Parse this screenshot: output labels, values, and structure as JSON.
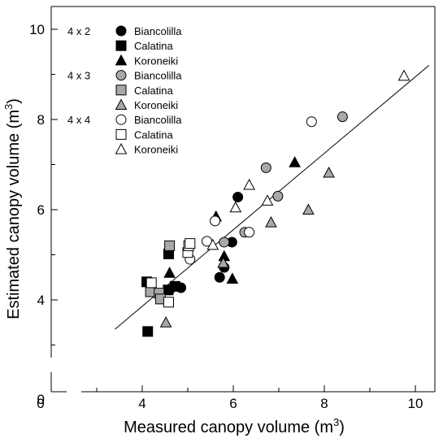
{
  "chart_data": {
    "type": "scatter",
    "title": "",
    "xlabel": "Measured canopy volume (m",
    "xlabel_sup": "3",
    "xlabel_end": ")",
    "ylabel": "Estimated canopy volume (m",
    "ylabel_sup": "3",
    "ylabel_end": ")",
    "xlim": [
      0,
      10.8
    ],
    "ylim": [
      0,
      10.6
    ],
    "x_axis_break": true,
    "y_axis_break": true,
    "x_ticks": [
      0,
      4,
      6,
      8,
      10
    ],
    "y_ticks": [
      0,
      4,
      6,
      8,
      10
    ],
    "minor_x_ticks": [
      3,
      5,
      7,
      9
    ],
    "minor_y_ticks": [
      3,
      5,
      7,
      9
    ],
    "grid": false,
    "legend_position": "top-left",
    "groups": [
      {
        "label": "4 x 2",
        "fill": "#000000",
        "series": [
          "s1",
          "s2",
          "s3"
        ]
      },
      {
        "label": "4 x 3",
        "fill": "#a8a8a8",
        "series": [
          "s4",
          "s5",
          "s6"
        ]
      },
      {
        "label": "4 x 4",
        "fill": "#ffffff",
        "series": [
          "s7",
          "s8",
          "s9"
        ]
      }
    ],
    "series": [
      {
        "id": "s1",
        "name": "Biancolilla",
        "marker": "circle",
        "fill": "#000000",
        "points": [
          [
            4.6,
            4.22
          ],
          [
            4.85,
            4.27
          ],
          [
            5.7,
            4.5
          ],
          [
            5.8,
            4.72
          ],
          [
            5.97,
            5.28
          ],
          [
            6.1,
            6.28
          ]
        ]
      },
      {
        "id": "s2",
        "name": "Calatina",
        "marker": "square",
        "fill": "#000000",
        "points": [
          [
            4.12,
            3.3
          ],
          [
            4.1,
            4.4
          ],
          [
            4.57,
            4.22
          ],
          [
            4.72,
            4.3
          ],
          [
            4.58,
            5.02
          ]
        ]
      },
      {
        "id": "s3",
        "name": "Koroneiki",
        "marker": "triangle",
        "fill": "#000000",
        "points": [
          [
            4.6,
            4.6
          ],
          [
            5.78,
            4.82
          ],
          [
            5.8,
            4.97
          ],
          [
            5.98,
            4.47
          ],
          [
            5.62,
            5.85
          ],
          [
            7.35,
            7.05
          ]
        ]
      },
      {
        "id": "s4",
        "name": "Biancolilla",
        "marker": "circle",
        "fill": "#a8a8a8",
        "points": [
          [
            5.8,
            5.28
          ],
          [
            6.25,
            5.5
          ],
          [
            6.98,
            6.3
          ],
          [
            6.72,
            6.93
          ],
          [
            8.4,
            8.06
          ]
        ]
      },
      {
        "id": "s5",
        "name": "Calatina",
        "marker": "square",
        "fill": "#a8a8a8",
        "points": [
          [
            4.18,
            4.18
          ],
          [
            4.37,
            4.15
          ],
          [
            4.4,
            4.02
          ],
          [
            4.6,
            5.2
          ]
        ]
      },
      {
        "id": "s6",
        "name": "Koroneiki",
        "marker": "triangle",
        "fill": "#a8a8a8",
        "points": [
          [
            4.52,
            3.5
          ],
          [
            5.78,
            4.82
          ],
          [
            6.83,
            5.72
          ],
          [
            7.65,
            6.0
          ],
          [
            8.1,
            6.82
          ]
        ]
      },
      {
        "id": "s7",
        "name": "Biancolilla",
        "marker": "circle",
        "fill": "#ffffff",
        "points": [
          [
            5.05,
            4.9
          ],
          [
            5.42,
            5.3
          ],
          [
            5.6,
            5.75
          ],
          [
            6.35,
            5.5
          ],
          [
            7.72,
            7.95
          ]
        ]
      },
      {
        "id": "s8",
        "name": "Calatina",
        "marker": "square",
        "fill": "#ffffff",
        "points": [
          [
            4.2,
            4.38
          ],
          [
            4.58,
            3.95
          ],
          [
            5.0,
            5.05
          ],
          [
            5.02,
            5.2
          ],
          [
            5.05,
            5.25
          ]
        ]
      },
      {
        "id": "s9",
        "name": "Koroneiki",
        "marker": "triangle",
        "fill": "#ffffff",
        "points": [
          [
            5.55,
            5.22
          ],
          [
            6.05,
            6.05
          ],
          [
            6.35,
            6.55
          ],
          [
            6.75,
            6.2
          ],
          [
            9.75,
            8.97
          ]
        ]
      }
    ],
    "regression_line": {
      "x": [
        3.4,
        10.3
      ],
      "y": [
        3.35,
        9.2
      ]
    }
  }
}
